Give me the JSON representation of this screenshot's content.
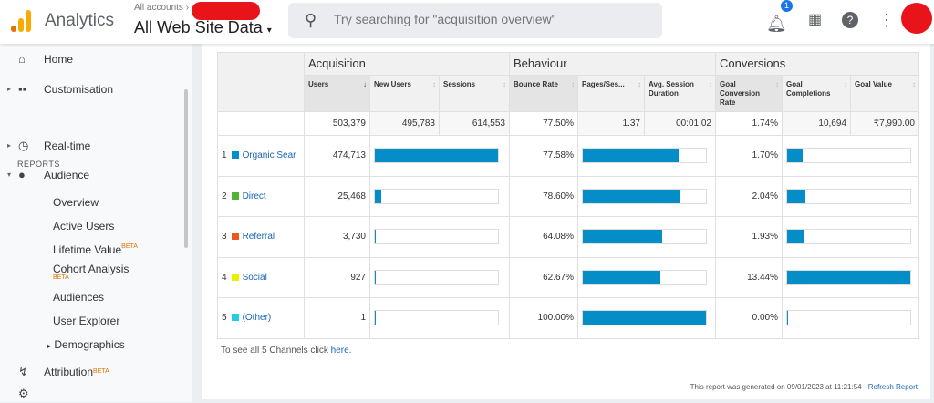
{
  "header": {
    "app_title": "Analytics",
    "account_path": "All accounts",
    "property": "All Web Site Data",
    "search_placeholder": "Try searching for \"acquisition overview\"",
    "notification_count": "1",
    "logo_colors": [
      "#f9ab00",
      "#e37400"
    ]
  },
  "sidebar": {
    "items": [
      {
        "label": "Home",
        "icon": "home-icon"
      },
      {
        "label": "Customisation",
        "icon": "dashboard-icon"
      },
      {
        "label": "Real-time",
        "icon": "clock-icon"
      },
      {
        "label": "Audience",
        "icon": "person-icon"
      },
      {
        "label": "Attribution",
        "icon": "attribution-icon",
        "badge": "BETA"
      }
    ],
    "section": "REPORTS",
    "audience_sub": [
      {
        "label": "Overview"
      },
      {
        "label": "Active Users"
      },
      {
        "label": "Lifetime Value",
        "badge": "BETA"
      },
      {
        "label": "Cohort Analysis",
        "badge": "BETA"
      },
      {
        "label": "Audiences"
      },
      {
        "label": "User Explorer"
      },
      {
        "label": "Demographics"
      }
    ]
  },
  "table": {
    "groups": [
      "Acquisition",
      "Behaviour",
      "Conversions"
    ],
    "columns": [
      "Users",
      "New Users",
      "Sessions",
      "Bounce Rate",
      "Pages/Ses...",
      "Avg. Session Duration",
      "Goal Conversion Rate",
      "Goal Completions",
      "Goal Value"
    ],
    "totals": [
      "503,379",
      "495,783",
      "614,553",
      "77.50%",
      "1.37",
      "00:01:02",
      "1.74%",
      "10,694",
      "₹7,990.00"
    ],
    "rows": [
      {
        "rank": "1",
        "channel": "Organic Sear",
        "color": "#058dc7",
        "users": "474,713",
        "users_value": 474713,
        "bounce": "77.58%",
        "bounce_value": 77.58,
        "conv": "1.70%",
        "conv_value": 1.7
      },
      {
        "rank": "2",
        "channel": "Direct",
        "color": "#50b432",
        "users": "25,468",
        "users_value": 25468,
        "bounce": "78.60%",
        "bounce_value": 78.6,
        "conv": "2.04%",
        "conv_value": 2.04
      },
      {
        "rank": "3",
        "channel": "Referral",
        "color": "#ed561b",
        "users": "3,730",
        "users_value": 3730,
        "bounce": "64.08%",
        "bounce_value": 64.08,
        "conv": "1.93%",
        "conv_value": 1.93
      },
      {
        "rank": "4",
        "channel": "Social",
        "color": "#edef00",
        "users": "927",
        "users_value": 927,
        "bounce": "62.67%",
        "bounce_value": 62.67,
        "conv": "13.44%",
        "conv_value": 13.44
      },
      {
        "rank": "5",
        "channel": "(Other)",
        "color": "#24cbe5",
        "users": "1",
        "users_value": 1,
        "bounce": "100.00%",
        "bounce_value": 100,
        "conv": "0.00%",
        "conv_value": 0
      }
    ]
  },
  "footer": {
    "see_all": "To see all 5 Channels click",
    "here": "here.",
    "generated": "This report was generated on 09/01/2023 at 11:21:54 ·",
    "refresh": "Refresh Report"
  },
  "bar_color": "#058dc7"
}
